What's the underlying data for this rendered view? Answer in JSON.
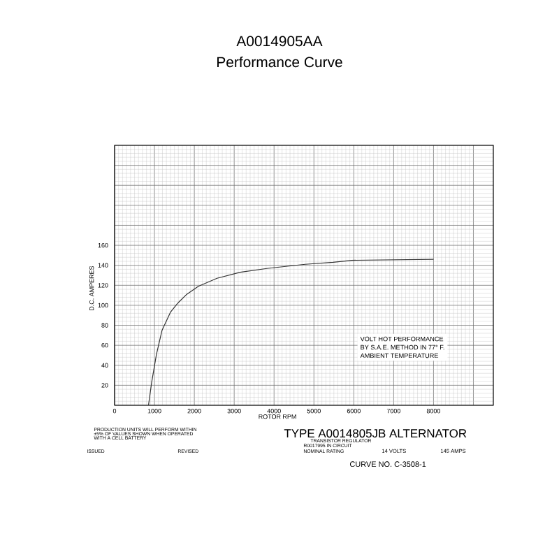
{
  "chart_data": {
    "type": "line",
    "title": "A0014905AA",
    "subtitle": "Performance Curve",
    "xlabel": "ROTOR RPM",
    "ylabel": "D.C. AMPERES",
    "x": [
      850,
      930,
      1050,
      1190,
      1400,
      1580,
      1810,
      2100,
      2570,
      3150,
      3850,
      4780,
      5480,
      5950,
      8000
    ],
    "values": [
      0,
      23,
      51,
      75,
      93,
      102,
      111,
      119,
      127,
      133,
      137,
      141,
      143,
      145,
      146
    ],
    "color": "#333333",
    "marker": "none",
    "line_style": "solid",
    "grid": true,
    "xlim": [
      0,
      9500
    ],
    "ylim": [
      0,
      260
    ],
    "xticks": [
      0,
      1000,
      2000,
      3000,
      4000,
      5000,
      6000,
      7000,
      8000,
      {
        "value": 9000,
        "label": null
      }
    ],
    "yticks": [
      {
        "value": 0,
        "label": null
      },
      20,
      40,
      60,
      80,
      100,
      120,
      140,
      160,
      {
        "value": 180,
        "label": null
      },
      {
        "value": 200,
        "label": null
      },
      {
        "value": 220,
        "label": null
      },
      {
        "value": 240,
        "label": null
      },
      {
        "value": 260,
        "label": null
      }
    ],
    "annotations": [
      "VOLT HOT PERFORMANCE",
      "BY S.A.E. METHOD IN 77° F.",
      "AMBIENT TEMPERATURE",
      "PRODUCTION UNITS WILL PERFORM WITHIN",
      "±5% OF VALUES SHOWN WHEN OPERATED",
      "WITH A CELL BATTERY",
      "ISSUED",
      "REVISED",
      "TYPE A0014805JB ALTERNATOR",
      "TRANSISTOR REGULATOR",
      "R0017995 IN CIRCUIT",
      "NOMINAL RATING",
      "14 VOLTS",
      "145 AMPS",
      "CURVE NO. C-3508-1"
    ]
  }
}
